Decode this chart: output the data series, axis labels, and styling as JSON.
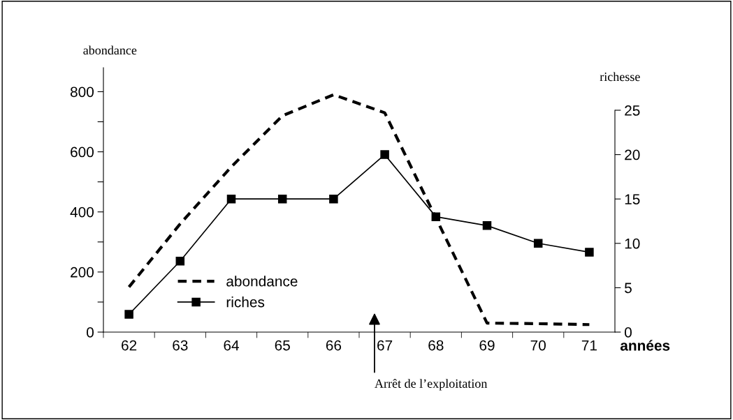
{
  "chart_data": {
    "type": "line",
    "categories": [
      "62",
      "63",
      "64",
      "65",
      "66",
      "67",
      "68",
      "69",
      "70",
      "71"
    ],
    "series": [
      {
        "name": "abondance",
        "color": "#000000",
        "line_style": "dashed",
        "marker": "none",
        "values": [
          150,
          360,
          550,
          720,
          790,
          730,
          380,
          30,
          28,
          25
        ]
      },
      {
        "name": "riches",
        "color": "#000000",
        "axis": "y2",
        "line_style": "solid",
        "marker": "square",
        "values": [
          2,
          8,
          15,
          15,
          15,
          20,
          13,
          12,
          10,
          9
        ]
      }
    ],
    "xlabel": "années",
    "ylabel": "abondance",
    "y2label": "richesse",
    "ylim": [
      0,
      880
    ],
    "yticks": [
      0,
      {
        "value": 100,
        "label": null
      },
      200,
      {
        "value": 300,
        "label": null
      },
      400,
      {
        "value": 500,
        "label": null
      },
      600,
      {
        "value": 700,
        "label": null
      },
      800
    ],
    "y2lim": [
      0,
      25
    ],
    "y2ticks": [
      0,
      5,
      10,
      15,
      20,
      25
    ],
    "grid": false,
    "legend": "bottom left",
    "annotations": [
      "Arrêt de l’exploitation"
    ]
  }
}
